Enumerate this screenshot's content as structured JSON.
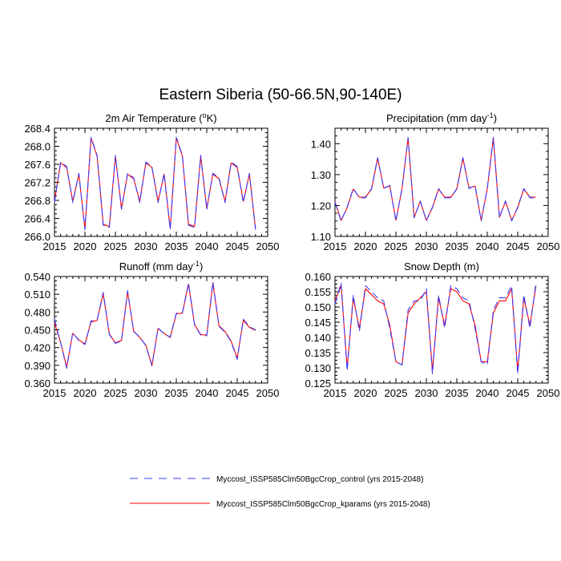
{
  "title": "Eastern Siberia (50-66.5N,90-140E)",
  "legend": [
    {
      "label": "Myccost_ISSP585Clm50BgcCrop_control (yrs 2015-2048)",
      "color": "#3b3bff",
      "style": "dashed"
    },
    {
      "label": "Myccost_ISSP585Clm50BgcCrop_kparams (yrs 2015-2048)",
      "color": "#ff0000",
      "style": "solid"
    }
  ],
  "chart_data": [
    {
      "type": "line",
      "title": "2m Air Temperature (",
      "title_sup": "o",
      "title_tail": "K)",
      "xlim": [
        2015,
        2050
      ],
      "xticks": [
        2015,
        2020,
        2025,
        2030,
        2035,
        2040,
        2045,
        2050
      ],
      "ylim": [
        266.0,
        268.4
      ],
      "yticks": [
        "266.0",
        "266.4",
        "266.8",
        "267.2",
        "267.6",
        "268.0",
        "268.4"
      ],
      "x": [
        2015,
        2016,
        2017,
        2018,
        2019,
        2020,
        2021,
        2022,
        2023,
        2024,
        2025,
        2026,
        2027,
        2028,
        2029,
        2030,
        2031,
        2032,
        2033,
        2034,
        2035,
        2036,
        2037,
        2038,
        2039,
        2040,
        2041,
        2042,
        2043,
        2044,
        2045,
        2046,
        2047,
        2048
      ],
      "series": [
        {
          "name": "control",
          "values": [
            266.75,
            267.65,
            267.55,
            266.75,
            267.4,
            266.15,
            268.2,
            267.8,
            266.25,
            266.2,
            267.8,
            266.6,
            267.4,
            267.3,
            266.75,
            267.65,
            267.55,
            266.75,
            267.4,
            266.15,
            268.2,
            267.8,
            266.25,
            266.2,
            267.8,
            266.6,
            267.4,
            267.3,
            266.75,
            267.65,
            267.55,
            266.75,
            267.4,
            266.15
          ]
        },
        {
          "name": "kparams",
          "values": [
            266.77,
            267.63,
            267.53,
            266.78,
            267.38,
            266.17,
            268.18,
            267.78,
            266.27,
            266.22,
            267.78,
            266.62,
            267.38,
            267.28,
            266.78,
            267.63,
            267.53,
            266.78,
            267.38,
            266.17,
            268.18,
            267.78,
            266.27,
            266.22,
            267.78,
            266.62,
            267.38,
            267.28,
            266.78,
            267.63,
            267.53,
            266.78,
            267.38,
            266.17
          ]
        }
      ]
    },
    {
      "type": "line",
      "title": "Precipitation (mm day",
      "title_sup": "-1",
      "title_tail": ")",
      "xlim": [
        2015,
        2050
      ],
      "xticks": [
        2015,
        2020,
        2025,
        2030,
        2035,
        2040,
        2045,
        2050
      ],
      "ylim": [
        1.1,
        1.45
      ],
      "yticks": [
        "1.10",
        "1.20",
        "1.30",
        "1.40"
      ],
      "x": [
        2015,
        2016,
        2017,
        2018,
        2019,
        2020,
        2021,
        2022,
        2023,
        2024,
        2025,
        2026,
        2027,
        2028,
        2029,
        2030,
        2031,
        2032,
        2033,
        2034,
        2035,
        2036,
        2037,
        2038,
        2039,
        2040,
        2041,
        2042,
        2043,
        2044,
        2045,
        2046,
        2047,
        2048
      ],
      "series": [
        {
          "name": "control",
          "values": [
            1.21,
            1.15,
            1.195,
            1.255,
            1.225,
            1.225,
            1.255,
            1.355,
            1.255,
            1.265,
            1.15,
            1.255,
            1.42,
            1.16,
            1.215,
            1.15,
            1.195,
            1.255,
            1.225,
            1.225,
            1.255,
            1.355,
            1.255,
            1.265,
            1.15,
            1.255,
            1.42,
            1.16,
            1.215,
            1.15,
            1.195,
            1.255,
            1.225,
            1.225
          ]
        },
        {
          "name": "kparams",
          "values": [
            1.212,
            1.152,
            1.193,
            1.253,
            1.227,
            1.227,
            1.253,
            1.353,
            1.257,
            1.263,
            1.152,
            1.253,
            1.418,
            1.162,
            1.213,
            1.152,
            1.193,
            1.253,
            1.227,
            1.227,
            1.253,
            1.353,
            1.257,
            1.263,
            1.152,
            1.253,
            1.418,
            1.162,
            1.213,
            1.152,
            1.193,
            1.253,
            1.227,
            1.227
          ]
        }
      ]
    },
    {
      "type": "line",
      "title": "Runoff (mm day",
      "title_sup": "-1",
      "title_tail": ")",
      "xlim": [
        2015,
        2050
      ],
      "xticks": [
        2015,
        2020,
        2025,
        2030,
        2035,
        2040,
        2045,
        2050
      ],
      "ylim": [
        0.36,
        0.54
      ],
      "yticks": [
        "0.360",
        "0.390",
        "0.420",
        "0.450",
        "0.480",
        "0.510",
        "0.540"
      ],
      "x": [
        2015,
        2016,
        2017,
        2018,
        2019,
        2020,
        2021,
        2022,
        2023,
        2024,
        2025,
        2026,
        2027,
        2028,
        2029,
        2030,
        2031,
        2032,
        2033,
        2034,
        2035,
        2036,
        2037,
        2038,
        2039,
        2040,
        2041,
        2042,
        2043,
        2044,
        2045,
        2046,
        2047,
        2048
      ],
      "series": [
        {
          "name": "control",
          "values": [
            0.468,
            0.428,
            0.385,
            0.445,
            0.432,
            0.425,
            0.465,
            0.467,
            0.513,
            0.442,
            0.427,
            0.431,
            0.516,
            0.447,
            0.438,
            0.423,
            0.389,
            0.453,
            0.443,
            0.438,
            0.478,
            0.479,
            0.529,
            0.458,
            0.441,
            0.44,
            0.531,
            0.456,
            0.446,
            0.43,
            0.4,
            0.468,
            0.455,
            0.45
          ]
        },
        {
          "name": "kparams",
          "values": [
            0.462,
            0.429,
            0.387,
            0.444,
            0.433,
            0.426,
            0.463,
            0.466,
            0.511,
            0.443,
            0.428,
            0.432,
            0.514,
            0.448,
            0.437,
            0.424,
            0.39,
            0.452,
            0.444,
            0.437,
            0.477,
            0.478,
            0.527,
            0.459,
            0.442,
            0.441,
            0.529,
            0.457,
            0.447,
            0.431,
            0.402,
            0.466,
            0.454,
            0.449
          ]
        }
      ]
    },
    {
      "type": "line",
      "title": "Snow Depth (m)",
      "title_sup": "",
      "title_tail": "",
      "xlim": [
        2015,
        2050
      ],
      "xticks": [
        2015,
        2020,
        2025,
        2030,
        2035,
        2040,
        2045,
        2050
      ],
      "ylim": [
        0.125,
        0.16
      ],
      "yticks": [
        "0.125",
        "0.130",
        "0.135",
        "0.140",
        "0.145",
        "0.150",
        "0.155",
        "0.160"
      ],
      "x": [
        2015,
        2016,
        2017,
        2018,
        2019,
        2020,
        2021,
        2022,
        2023,
        2024,
        2025,
        2026,
        2027,
        2028,
        2029,
        2030,
        2031,
        2032,
        2033,
        2034,
        2035,
        2036,
        2037,
        2038,
        2039,
        2040,
        2041,
        2042,
        2043,
        2044,
        2045,
        2046,
        2047,
        2048
      ],
      "series": [
        {
          "name": "control",
          "values": [
            0.151,
            0.158,
            0.129,
            0.154,
            0.142,
            0.157,
            0.155,
            0.153,
            0.152,
            0.143,
            0.132,
            0.131,
            0.149,
            0.152,
            0.152,
            0.156,
            0.128,
            0.154,
            0.143,
            0.157,
            0.156,
            0.153,
            0.152,
            0.143,
            0.132,
            0.131,
            0.149,
            0.153,
            0.153,
            0.157,
            0.128,
            0.154,
            0.143,
            0.158
          ]
        },
        {
          "name": "kparams",
          "values": [
            0.152,
            0.157,
            0.13,
            0.153,
            0.143,
            0.156,
            0.154,
            0.152,
            0.151,
            0.144,
            0.132,
            0.131,
            0.148,
            0.151,
            0.153,
            0.155,
            0.129,
            0.153,
            0.144,
            0.156,
            0.155,
            0.152,
            0.151,
            0.144,
            0.132,
            0.132,
            0.148,
            0.152,
            0.152,
            0.156,
            0.129,
            0.153,
            0.144,
            0.157
          ]
        }
      ]
    }
  ]
}
